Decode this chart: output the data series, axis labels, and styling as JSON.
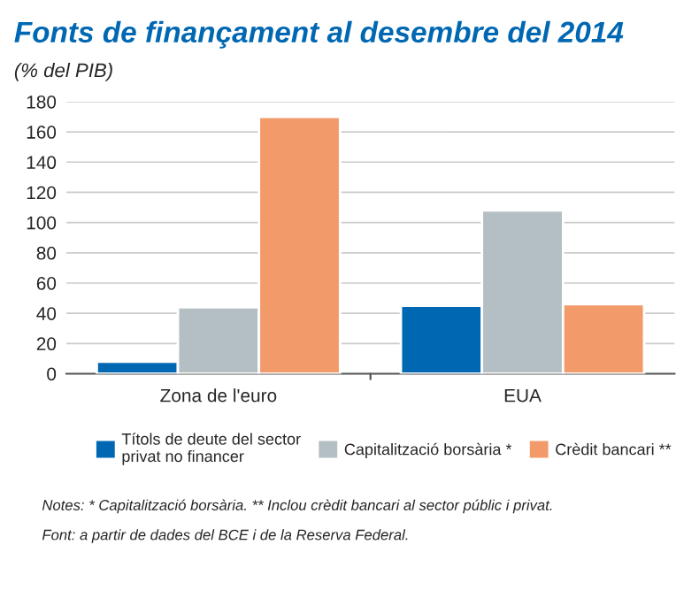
{
  "chart_data": {
    "type": "bar",
    "title": "Fonts de finançament al desembre del 2014",
    "subtitle": "(% del PIB)",
    "categories": [
      "Zona de l'euro",
      "EUA"
    ],
    "series": [
      {
        "name": "Títols de deute del sector\nprivat no financer",
        "color": "#0068b3",
        "values": [
          8,
          45
        ]
      },
      {
        "name": "Capitalització borsària *",
        "color": "#b3bfc3",
        "values": [
          44,
          108
        ]
      },
      {
        "name": "Crèdit bancari **",
        "color": "#f39a6b",
        "values": [
          170,
          46
        ]
      }
    ],
    "ylim": [
      0,
      180
    ],
    "yticks": [
      0,
      20,
      40,
      60,
      80,
      100,
      120,
      140,
      160,
      180
    ],
    "grid": "y",
    "legend": "bottom",
    "annotations": [
      "Notes: * Capitalització borsària. ** Inclou crèdit bancari al sector públic i privat.",
      "Font: a partir de dades del BCE i de la Reserva Federal."
    ]
  }
}
